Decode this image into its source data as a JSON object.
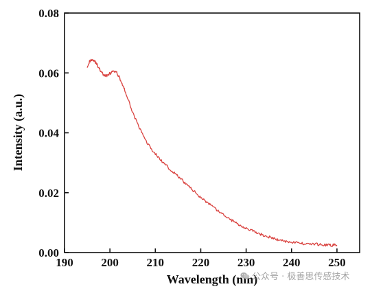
{
  "chart_data": {
    "type": "line",
    "title": "",
    "xlabel": "Wavelength (nm)",
    "ylabel": "Intensity (a.u.)",
    "xlim": [
      190,
      255
    ],
    "ylim": [
      0.0,
      0.08
    ],
    "xticks": [
      190,
      200,
      210,
      220,
      230,
      240,
      250
    ],
    "xtick_labels": [
      "190",
      "200",
      "210",
      "220",
      "230",
      "240",
      "250"
    ],
    "yticks": [
      0.0,
      0.02,
      0.04,
      0.06,
      0.08
    ],
    "ytick_labels": [
      "0.00",
      "0.02",
      "0.04",
      "0.06",
      "0.08"
    ],
    "grid": false,
    "legend": "none",
    "line_color": "#d9423f",
    "series": [
      {
        "x": [
          195,
          195.5,
          196,
          196.5,
          197,
          197.5,
          198,
          198.5,
          199,
          199.5,
          200,
          200.5,
          201,
          201.5,
          202,
          202.5,
          203,
          203.5,
          204,
          205,
          206,
          207,
          208,
          209,
          210,
          211,
          212,
          213,
          214,
          215,
          216,
          217,
          218,
          219,
          220,
          221,
          222,
          223,
          224,
          225,
          226,
          227,
          228,
          229,
          230,
          231,
          232,
          233,
          234,
          235,
          236,
          237,
          238,
          239,
          240,
          241,
          242,
          243,
          244,
          245,
          246,
          247,
          248,
          249,
          250
        ],
        "y": [
          0.0622,
          0.0638,
          0.0645,
          0.0642,
          0.0632,
          0.0618,
          0.0605,
          0.0595,
          0.059,
          0.0593,
          0.0598,
          0.0603,
          0.0605,
          0.06,
          0.0588,
          0.057,
          0.0552,
          0.0532,
          0.051,
          0.047,
          0.0432,
          0.04,
          0.0372,
          0.0348,
          0.033,
          0.0312,
          0.0296,
          0.0282,
          0.0268,
          0.0254,
          0.024,
          0.0226,
          0.0212,
          0.0198,
          0.0185,
          0.0172,
          0.016,
          0.0148,
          0.0137,
          0.0126,
          0.0116,
          0.0106,
          0.0097,
          0.0089,
          0.0082,
          0.0075,
          0.0068,
          0.0062,
          0.0057,
          0.0052,
          0.0047,
          0.0043,
          0.004,
          0.0037,
          0.0035,
          0.0033,
          0.0031,
          0.003,
          0.0029,
          0.0028,
          0.0027,
          0.0026,
          0.0025,
          0.0025,
          0.0025
        ]
      }
    ]
  },
  "watermark": {
    "text": "公众号 · 极善思传感技术",
    "icon": "wechat-icon",
    "color": "#9a9a9a"
  }
}
